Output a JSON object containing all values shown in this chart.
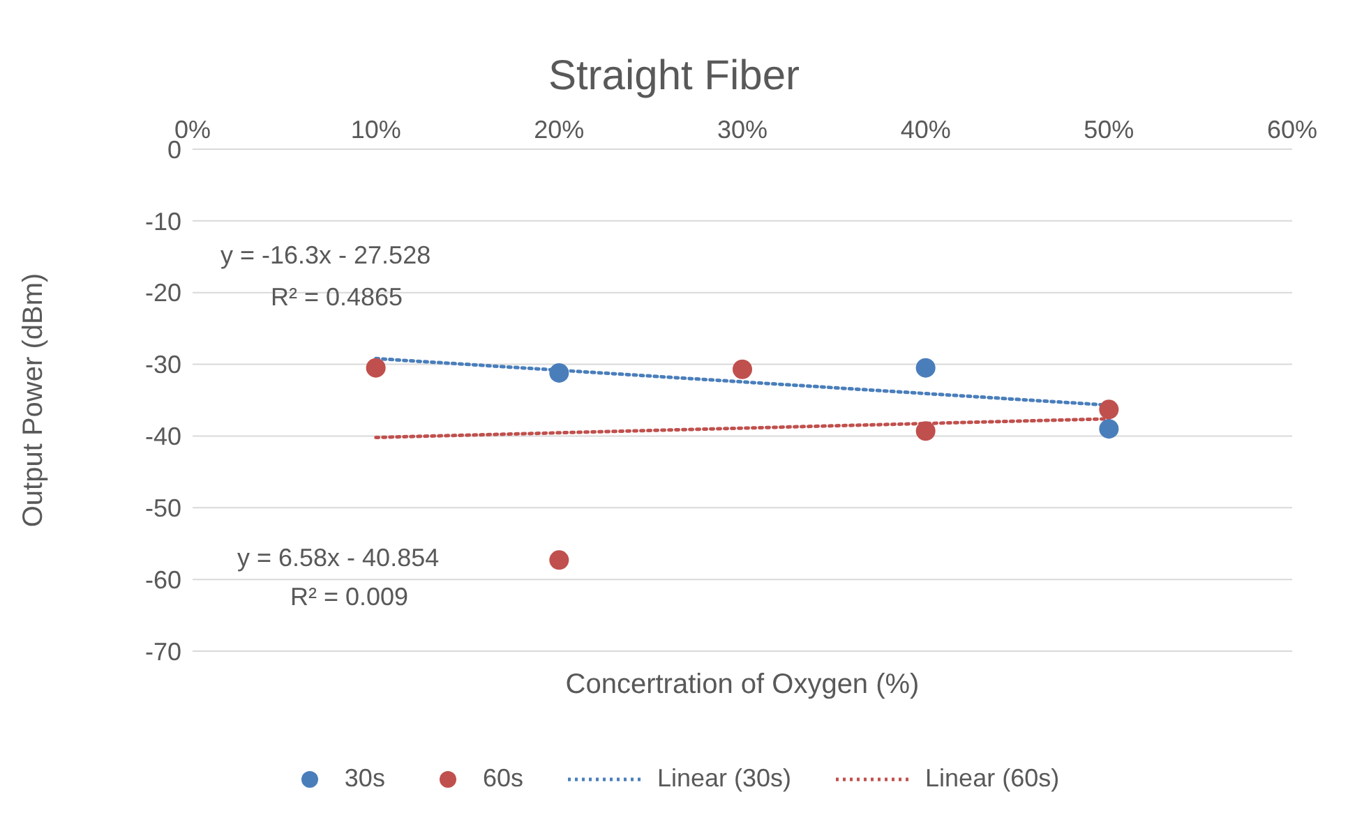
{
  "chart_data": {
    "type": "scatter",
    "title": "Straight Fiber",
    "xlabel": "Concertration of Oxygen (%)",
    "ylabel": "Output Power (dBm)",
    "xlim": [
      0,
      0.6
    ],
    "xticks": [
      {
        "value": 0,
        "label": "0%"
      },
      {
        "value": 0.1,
        "label": "10%"
      },
      {
        "value": 0.2,
        "label": "20%"
      },
      {
        "value": 0.3,
        "label": "30%"
      },
      {
        "value": 0.4,
        "label": "40%"
      },
      {
        "value": 0.5,
        "label": "50%"
      },
      {
        "value": 0.6,
        "label": "60%"
      }
    ],
    "ylim": [
      -70,
      0
    ],
    "yticks": [
      -70,
      -60,
      -50,
      -40,
      -30,
      -20,
      -10,
      0
    ],
    "grid": "y",
    "legend": "bottom",
    "marker": "circle",
    "series": [
      {
        "name": "30s",
        "color": "#4a7ebb",
        "x": [
          0.2,
          0.4,
          0.5
        ],
        "values": [
          -31.2,
          -30.5,
          -39
        ]
      },
      {
        "name": "60s",
        "color": "#c0504d",
        "x": [
          0.1,
          0.2,
          0.3,
          0.4,
          0.5
        ],
        "values": [
          -30.5,
          -57.3,
          -30.7,
          -39.3,
          -36.3
        ]
      },
      {
        "name": "Linear (30s)",
        "type": "line",
        "marker": "none",
        "line_style": "dotted",
        "color": "#4a7ebb",
        "x": [
          0.1,
          0.5
        ],
        "values": [
          -29.2,
          -35.7
        ]
      },
      {
        "name": "Linear (60s)",
        "type": "line",
        "marker": "none",
        "line_style": "dotted",
        "color": "#c0504d",
        "x": [
          0.1,
          0.5
        ],
        "values": [
          -40.2,
          -37.6
        ]
      }
    ],
    "annotations": [
      "y = -16.3x - 27.528",
      "R² = 0.4865",
      "y = 6.58x - 40.854",
      "R² = 0.009"
    ]
  }
}
